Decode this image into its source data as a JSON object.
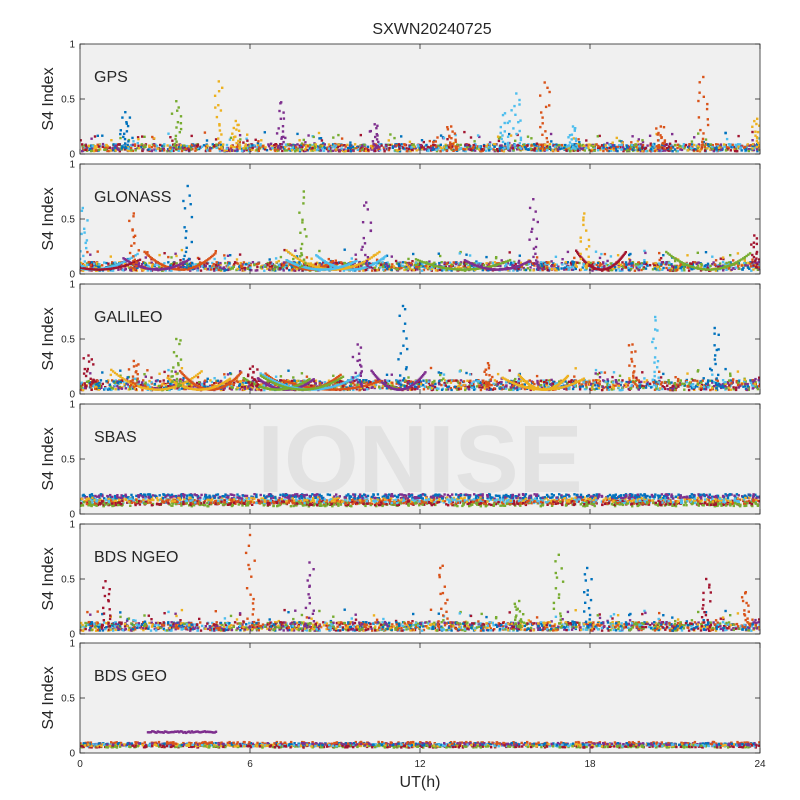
{
  "chart_data": {
    "type": "scatter",
    "title": "SXWN20240725",
    "xlabel": "UT(h)",
    "ylabel": "S4 Index",
    "watermark": "IONISE",
    "xlim": [
      0,
      24
    ],
    "ylim": [
      0,
      1
    ],
    "xticks": [
      "0",
      "6",
      "12",
      "18",
      "24"
    ],
    "yticks": [
      "0",
      "0.5",
      "1"
    ],
    "series_colors": [
      "#0072BD",
      "#D95319",
      "#EDB120",
      "#7E2F8E",
      "#77AC30",
      "#4DBEEE",
      "#A2142F"
    ],
    "panels": [
      {
        "label": "GPS",
        "baseline": 0.05,
        "spikes": [
          {
            "x": 1.6,
            "y": 0.38,
            "c": 0
          },
          {
            "x": 3.4,
            "y": 0.48,
            "c": 4
          },
          {
            "x": 4.9,
            "y": 0.66,
            "c": 2
          },
          {
            "x": 5.5,
            "y": 0.3,
            "c": 2
          },
          {
            "x": 7.1,
            "y": 0.47,
            "c": 3
          },
          {
            "x": 10.4,
            "y": 0.27,
            "c": 3
          },
          {
            "x": 13.1,
            "y": 0.25,
            "c": 1
          },
          {
            "x": 15.0,
            "y": 0.37,
            "c": 5
          },
          {
            "x": 15.4,
            "y": 0.55,
            "c": 5
          },
          {
            "x": 16.4,
            "y": 0.65,
            "c": 1
          },
          {
            "x": 17.4,
            "y": 0.25,
            "c": 5
          },
          {
            "x": 20.5,
            "y": 0.25,
            "c": 1
          },
          {
            "x": 22.0,
            "y": 0.7,
            "c": 1
          },
          {
            "x": 23.9,
            "y": 0.32,
            "c": 2
          }
        ]
      },
      {
        "label": "GLONASS",
        "baseline": 0.06,
        "spikes": [
          {
            "x": 0.1,
            "y": 0.6,
            "c": 5
          },
          {
            "x": 1.9,
            "y": 0.55,
            "c": 1
          },
          {
            "x": 3.8,
            "y": 0.8,
            "c": 0
          },
          {
            "x": 7.9,
            "y": 0.75,
            "c": 4
          },
          {
            "x": 10.1,
            "y": 0.65,
            "c": 3
          },
          {
            "x": 16.0,
            "y": 0.68,
            "c": 3
          },
          {
            "x": 17.8,
            "y": 0.55,
            "c": 2
          },
          {
            "x": 23.8,
            "y": 0.35,
            "c": 6
          }
        ]
      },
      {
        "label": "GALILEO",
        "baseline": 0.07,
        "spikes": [
          {
            "x": 0.3,
            "y": 0.35,
            "c": 6
          },
          {
            "x": 1.9,
            "y": 0.3,
            "c": 1
          },
          {
            "x": 3.4,
            "y": 0.5,
            "c": 4
          },
          {
            "x": 6.1,
            "y": 0.25,
            "c": 6
          },
          {
            "x": 9.8,
            "y": 0.45,
            "c": 3
          },
          {
            "x": 11.4,
            "y": 0.8,
            "c": 0
          },
          {
            "x": 14.4,
            "y": 0.28,
            "c": 1
          },
          {
            "x": 19.5,
            "y": 0.45,
            "c": 1
          },
          {
            "x": 20.3,
            "y": 0.7,
            "c": 5
          },
          {
            "x": 22.4,
            "y": 0.6,
            "c": 0
          }
        ]
      },
      {
        "label": "SBAS",
        "baseline": 0.12,
        "spikes": []
      },
      {
        "label": "BDS NGEO",
        "baseline": 0.06,
        "spikes": [
          {
            "x": 0.9,
            "y": 0.48,
            "c": 6
          },
          {
            "x": 6.0,
            "y": 0.9,
            "c": 1
          },
          {
            "x": 8.1,
            "y": 0.65,
            "c": 3
          },
          {
            "x": 12.8,
            "y": 0.62,
            "c": 1
          },
          {
            "x": 15.5,
            "y": 0.3,
            "c": 4
          },
          {
            "x": 16.9,
            "y": 0.72,
            "c": 4
          },
          {
            "x": 17.9,
            "y": 0.6,
            "c": 0
          },
          {
            "x": 22.1,
            "y": 0.5,
            "c": 6
          },
          {
            "x": 23.5,
            "y": 0.38,
            "c": 1
          }
        ]
      },
      {
        "label": "BDS GEO",
        "baseline": 0.08,
        "spikes": [],
        "segments": [
          {
            "x0": 2.4,
            "x1": 4.8,
            "y": 0.19,
            "c": 3
          }
        ]
      }
    ]
  }
}
